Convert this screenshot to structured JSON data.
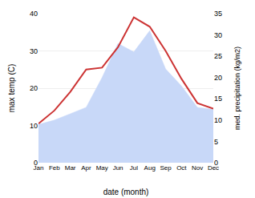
{
  "chart_data": {
    "type": "line",
    "xlabel": "date (month)",
    "ylabel": "max temp (C)",
    "y2label": "med. precipitation (kg/m2)",
    "categories": [
      "Jan",
      "Feb",
      "Mar",
      "Apr",
      "May",
      "Jun",
      "Jul",
      "Aug",
      "Sep",
      "Oct",
      "Nov",
      "Dec"
    ],
    "series": [
      {
        "type": "area",
        "axis": "y2",
        "color": "#c8d8f8",
        "values": [
          9.0,
          10.0,
          11.5,
          13.0,
          20.0,
          28.0,
          26.0,
          31.0,
          22.0,
          18.0,
          13.0,
          12.5
        ]
      },
      {
        "type": "line",
        "color": "#cc3333",
        "values": [
          10.5,
          14.0,
          19.0,
          25.0,
          25.5,
          31.0,
          39.0,
          36.5,
          30.0,
          22.5,
          16.0,
          14.5
        ]
      }
    ],
    "ylim": [
      0,
      40
    ],
    "yticks": [
      0,
      10,
      20,
      30,
      40
    ],
    "y2lim": [
      0,
      35
    ],
    "y2ticks": [
      0,
      5,
      10,
      15,
      20,
      25,
      30,
      35
    ],
    "grid": true
  }
}
